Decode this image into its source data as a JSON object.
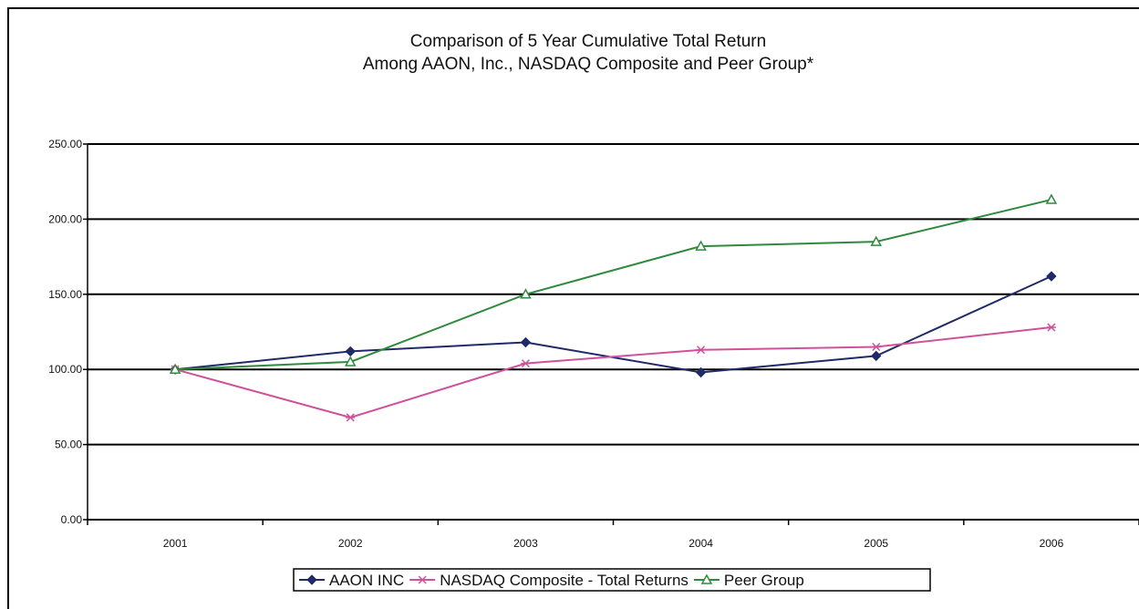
{
  "chart_data": {
    "type": "line",
    "title_line1": "Comparison of 5 Year Cumulative Total Return",
    "title_line2": "Among AAON, Inc., NASDAQ Composite and Peer Group*",
    "categories": [
      "2001",
      "2002",
      "2003",
      "2004",
      "2005",
      "2006"
    ],
    "y_ticks": [
      "0.00",
      "50.00",
      "100.00",
      "150.00",
      "200.00",
      "250.00"
    ],
    "ylim": [
      0,
      250
    ],
    "grid": true,
    "legend_position": "bottom",
    "series": [
      {
        "name": "AAON INC",
        "color": "#1f2a66",
        "marker": "diamond",
        "values": [
          100,
          112,
          118,
          98,
          109,
          162
        ]
      },
      {
        "name": "NASDAQ Composite - Total Returns",
        "color": "#d0509a",
        "marker": "star",
        "values": [
          100,
          68,
          104,
          113,
          115,
          128
        ]
      },
      {
        "name": "Peer Group",
        "color": "#2f8a3c",
        "marker": "triangle",
        "values": [
          100,
          105,
          150,
          182,
          185,
          213
        ]
      }
    ]
  }
}
